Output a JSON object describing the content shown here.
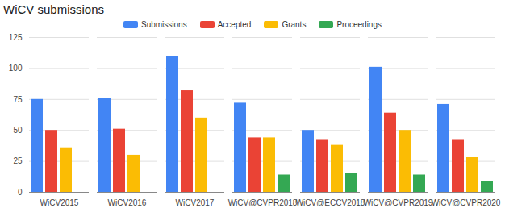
{
  "chart_data": {
    "type": "bar",
    "title": "WiCV submissions",
    "categories": [
      "WiCV2015",
      "WiCV2016",
      "WiCV2017",
      "WiCV@CVPR2018",
      "WiCV@ECCV2018",
      "WiCV@CVPR2019",
      "WiCV@CVPR2020"
    ],
    "series": [
      {
        "name": "Submissions",
        "color": "#4285f4",
        "values": [
          75,
          76,
          110,
          72,
          50,
          101,
          71
        ]
      },
      {
        "name": "Accepted",
        "color": "#ea4335",
        "values": [
          50,
          51,
          82,
          44,
          42,
          64,
          42
        ]
      },
      {
        "name": "Grants",
        "color": "#fbbc04",
        "values": [
          36,
          30,
          60,
          44,
          38,
          50,
          28
        ]
      },
      {
        "name": "Proceedings",
        "color": "#34a853",
        "values": [
          null,
          null,
          null,
          14,
          15,
          14,
          9
        ]
      }
    ],
    "ylim": [
      0,
      125
    ],
    "yticks": [
      0,
      25,
      50,
      75,
      100,
      125
    ],
    "grid": true,
    "legend": "top"
  }
}
